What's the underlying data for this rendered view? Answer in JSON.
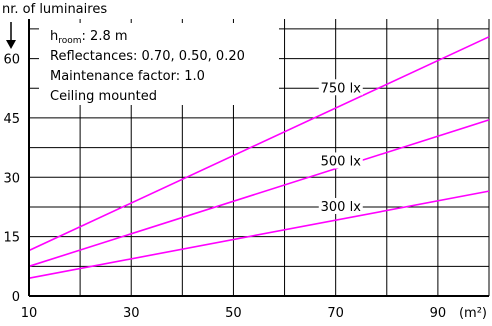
{
  "chart_data": {
    "type": "line",
    "ylabel": "nr. of luminaires",
    "xlabel": "(m²)",
    "xlim": [
      10,
      100
    ],
    "ylim": [
      0,
      70
    ],
    "x_ticks": [
      10,
      30,
      50,
      70,
      90
    ],
    "y_ticks": [
      0,
      15,
      30,
      45,
      60
    ],
    "x_grid": [
      10,
      20,
      30,
      40,
      50,
      60,
      70,
      80,
      90,
      100
    ],
    "y_grid": [
      0,
      7.5,
      15,
      22.5,
      30,
      37.5,
      45,
      52.5,
      60,
      67.5
    ],
    "grid": true,
    "line_color": "#ff00ff",
    "notes": {
      "room_height_base": "h",
      "room_height_sub": "room",
      "room_height_value": ": 2.8 m",
      "reflectances": "Reflectances:  0.70, 0.50, 0.20",
      "maintenance": "Maintenance factor:  1.0",
      "mounting": "Ceiling mounted"
    },
    "series": [
      {
        "name": "750 lx",
        "x": [
          10,
          100
        ],
        "y": [
          11.5,
          65.5
        ],
        "label_x": 71,
        "label_y": 52.5
      },
      {
        "name": "500 lx",
        "x": [
          10,
          100
        ],
        "y": [
          7.5,
          44.5
        ],
        "label_x": 71,
        "label_y": 34
      },
      {
        "name": "300 lx",
        "x": [
          10,
          100
        ],
        "y": [
          4.5,
          26.5
        ],
        "label_x": 71,
        "label_y": 22.5
      }
    ]
  }
}
